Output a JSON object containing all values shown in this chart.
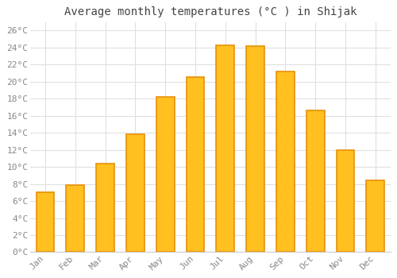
{
  "title": "Average monthly temperatures (°C ) in Shijak",
  "months": [
    "Jan",
    "Feb",
    "Mar",
    "Apr",
    "May",
    "Jun",
    "Jul",
    "Aug",
    "Sep",
    "Oct",
    "Nov",
    "Dec"
  ],
  "values": [
    7.0,
    7.9,
    10.4,
    13.8,
    18.2,
    20.5,
    24.3,
    24.2,
    21.2,
    16.6,
    12.0,
    8.4
  ],
  "bar_color": "#FFC020",
  "bar_edge_color": "#E8900A",
  "ylim": [
    0,
    27
  ],
  "yticks": [
    0,
    2,
    4,
    6,
    8,
    10,
    12,
    14,
    16,
    18,
    20,
    22,
    24,
    26
  ],
  "background_color": "#ffffff",
  "grid_color": "#e0e0e0",
  "title_fontsize": 10,
  "tick_fontsize": 8,
  "font_family": "monospace"
}
